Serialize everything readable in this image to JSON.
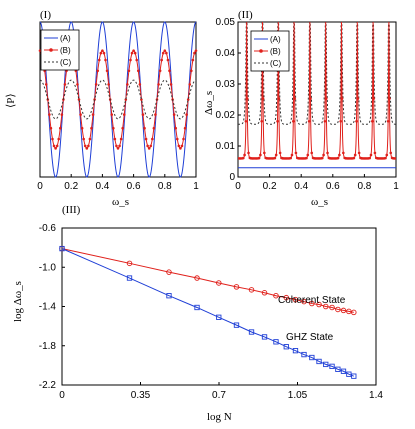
{
  "chart_data": [
    {
      "panel": "(I)",
      "type": "line",
      "xlabel": "ω_s",
      "ylabel": "⟨P⟩",
      "xlim": [
        0,
        1
      ],
      "ylim": [
        -1,
        1
      ],
      "x_ticks": [
        "0",
        "0.2",
        "0.4",
        "0.6",
        "0.8",
        "1"
      ],
      "y_ticks": [],
      "legend_position": "top-left",
      "series": [
        {
          "name": "(A)",
          "color": "#1f3fd6",
          "style": "solid",
          "marker": "none",
          "amplitude": 1.0,
          "frequency": 5
        },
        {
          "name": "(B)",
          "color": "#e0201b",
          "style": "solid",
          "marker": "dot",
          "amplitude": 0.63,
          "frequency": 5
        },
        {
          "name": "(C)",
          "color": "#333333",
          "style": "dashed",
          "marker": "none",
          "amplitude": 0.25,
          "frequency": 5
        }
      ]
    },
    {
      "panel": "(II)",
      "type": "line",
      "xlabel": "ω_s",
      "ylabel": "Δω_s",
      "xlim": [
        0,
        1
      ],
      "ylim": [
        0,
        0.05
      ],
      "x_ticks": [
        "0",
        "0.2",
        "0.4",
        "0.6",
        "0.8",
        "1"
      ],
      "y_ticks": [
        "0",
        "0.01",
        "0.02",
        "0.03",
        "0.04",
        "0.05"
      ],
      "legend_position": "top-left",
      "series": [
        {
          "name": "(A)",
          "color": "#1f3fd6",
          "style": "solid",
          "marker": "none",
          "baseline": 0.003
        },
        {
          "name": "(B)",
          "color": "#e0201b",
          "style": "solid",
          "marker": "dot",
          "baseline": 0.006,
          "spike_count": 10
        },
        {
          "name": "(C)",
          "color": "#333333",
          "style": "dashed",
          "marker": "none",
          "baseline": 0.017,
          "spike_count": 10
        }
      ]
    },
    {
      "panel": "(III)",
      "type": "line",
      "xlabel": "log N",
      "ylabel": "log Δω_s",
      "xlim": [
        0,
        1.4
      ],
      "ylim": [
        -2.2,
        -0.6
      ],
      "x_ticks": [
        "0",
        "0.35",
        "0.7",
        "1.05",
        "1.4"
      ],
      "y_ticks": [
        "-0.6",
        "-1.0",
        "-1.4",
        "-1.8",
        "-2.2"
      ],
      "annotations": [
        "Coherent State",
        "GHZ State"
      ],
      "series": [
        {
          "name": "Coherent State",
          "color": "#e0201b",
          "marker": "circle",
          "x": [
            0,
            0.301,
            0.477,
            0.602,
            0.699,
            0.778,
            0.845,
            0.903,
            0.954,
            1.0,
            1.041,
            1.079,
            1.114,
            1.146,
            1.176,
            1.204,
            1.23,
            1.255,
            1.279,
            1.301
          ],
          "y": [
            -0.81,
            -0.96,
            -1.05,
            -1.11,
            -1.16,
            -1.2,
            -1.23,
            -1.26,
            -1.29,
            -1.31,
            -1.33,
            -1.35,
            -1.37,
            -1.38,
            -1.4,
            -1.41,
            -1.43,
            -1.44,
            -1.45,
            -1.46
          ]
        },
        {
          "name": "GHZ State",
          "color": "#1f3fd6",
          "marker": "square",
          "x": [
            0,
            0.301,
            0.477,
            0.602,
            0.699,
            0.778,
            0.845,
            0.903,
            0.954,
            1.0,
            1.041,
            1.079,
            1.114,
            1.146,
            1.176,
            1.204,
            1.23,
            1.255,
            1.279,
            1.301
          ],
          "y": [
            -0.81,
            -1.11,
            -1.29,
            -1.41,
            -1.51,
            -1.59,
            -1.66,
            -1.71,
            -1.76,
            -1.81,
            -1.85,
            -1.89,
            -1.92,
            -1.96,
            -1.99,
            -2.01,
            -2.04,
            -2.06,
            -2.09,
            -2.11
          ]
        }
      ]
    }
  ]
}
